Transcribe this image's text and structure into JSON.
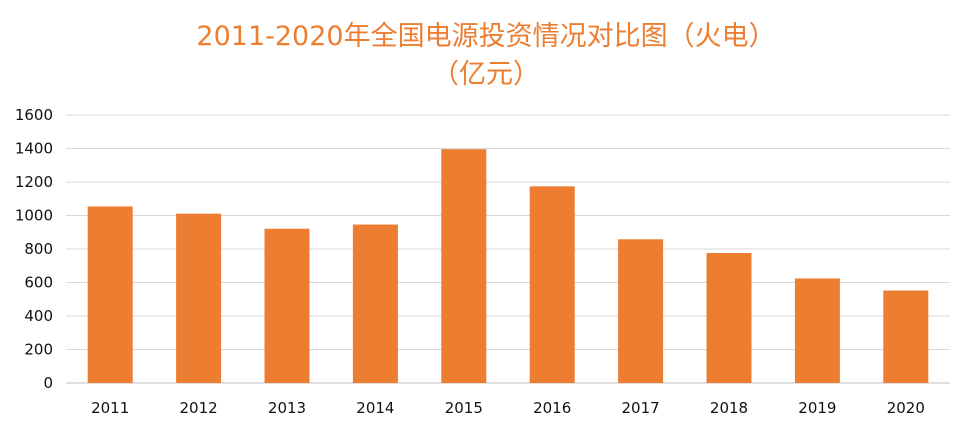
{
  "chart_data": {
    "type": "bar",
    "title": "2011-2020年全国电源投资情况对比图（火电）",
    "subtitle": "（亿元）",
    "categories": [
      "2011",
      "2012",
      "2013",
      "2014",
      "2015",
      "2016",
      "2017",
      "2018",
      "2019",
      "2020"
    ],
    "series": [
      {
        "values": [
          1054,
          1011,
          921,
          946,
          1396,
          1174,
          858,
          776,
          624,
          552
        ]
      }
    ],
    "ylim": [
      0,
      1600
    ],
    "yticks": [
      "0",
      "200",
      "400",
      "600",
      "800",
      "1000",
      "1200",
      "1400",
      "1600"
    ],
    "grid": true,
    "legend": "none",
    "colors": {
      "bar": "#ED7D31",
      "title": "#ED7D31",
      "grid": "#D9D9D9",
      "axis": "#BFBFBF"
    }
  }
}
